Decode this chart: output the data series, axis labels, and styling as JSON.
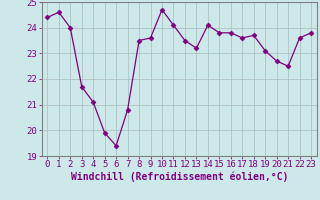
{
  "x": [
    0,
    1,
    2,
    3,
    4,
    5,
    6,
    7,
    8,
    9,
    10,
    11,
    12,
    13,
    14,
    15,
    16,
    17,
    18,
    19,
    20,
    21,
    22,
    23
  ],
  "y": [
    24.4,
    24.6,
    24.0,
    21.7,
    21.1,
    19.9,
    19.4,
    20.8,
    23.5,
    23.6,
    24.7,
    24.1,
    23.5,
    23.2,
    24.1,
    23.8,
    23.8,
    23.6,
    23.7,
    23.1,
    22.7,
    22.5,
    23.6,
    23.8
  ],
  "xlabel": "Windchill (Refroidissement éolien,°C)",
  "ylim": [
    19,
    25
  ],
  "xlim": [
    -0.5,
    23.5
  ],
  "yticks": [
    19,
    20,
    21,
    22,
    23,
    24,
    25
  ],
  "xticks": [
    0,
    1,
    2,
    3,
    4,
    5,
    6,
    7,
    8,
    9,
    10,
    11,
    12,
    13,
    14,
    15,
    16,
    17,
    18,
    19,
    20,
    21,
    22,
    23
  ],
  "line_color": "#800080",
  "marker": "D",
  "marker_size": 2.5,
  "bg_color": "#cce8e8",
  "grid_color": "#aabbbb",
  "label_color": "#800080",
  "tick_fontsize": 6.5,
  "xlabel_fontsize": 7.0
}
